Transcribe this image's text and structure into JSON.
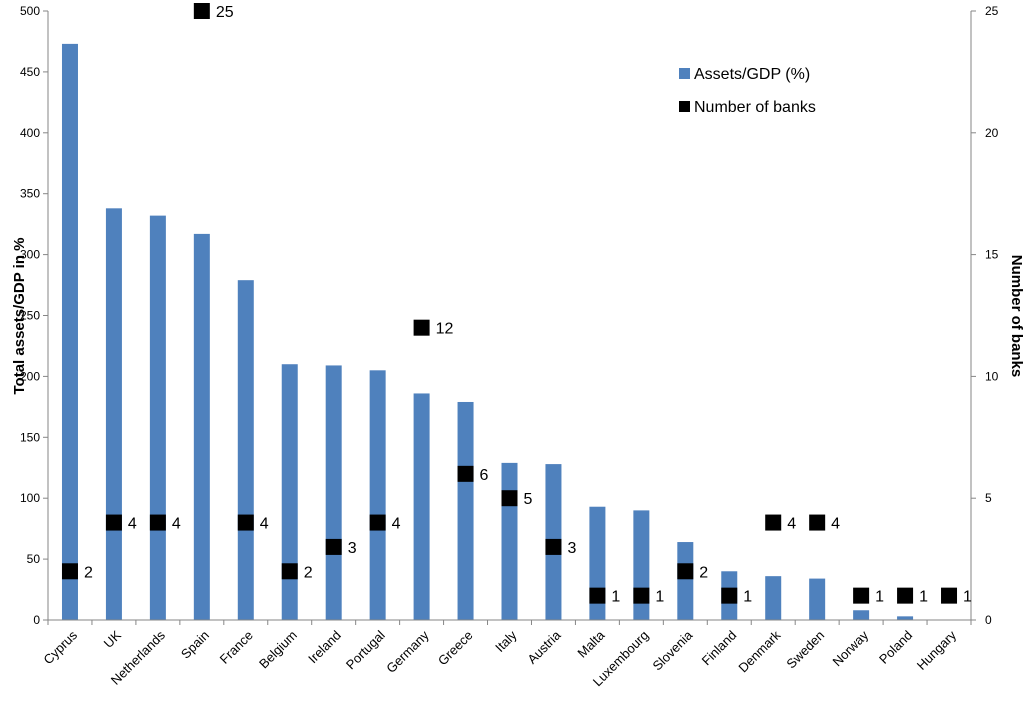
{
  "chart_data": {
    "type": "bar",
    "categories": [
      "Cyprus",
      "UK",
      "Netherlands",
      "Spain",
      "France",
      "Belgium",
      "Ireland",
      "Portugal",
      "Germany",
      "Greece",
      "Italy",
      "Austria",
      "Malta",
      "Luxembourg",
      "Slovenia",
      "Finland",
      "Denmark",
      "Sweden",
      "Norway",
      "Poland",
      "Hungary"
    ],
    "series": [
      {
        "name": "Assets/GDP (%)",
        "kind": "bar",
        "axis": "left",
        "color": "#4f81bd",
        "values": [
          473,
          338,
          332,
          317,
          279,
          210,
          209,
          205,
          186,
          179,
          129,
          128,
          93,
          90,
          64,
          40,
          36,
          34,
          8,
          3,
          0
        ]
      },
      {
        "name": "Number of banks",
        "kind": "marker",
        "axis": "right",
        "color": "#000000",
        "values": [
          2,
          4,
          4,
          25,
          4,
          2,
          3,
          4,
          12,
          6,
          5,
          3,
          1,
          1,
          2,
          1,
          4,
          4,
          1,
          1,
          1
        ]
      }
    ],
    "ylabel": "Total assets/GDP in %",
    "y2label": "Number of banks",
    "ylim": [
      0,
      500
    ],
    "y2lim": [
      0,
      25
    ],
    "yticks": [
      0,
      50,
      100,
      150,
      200,
      250,
      300,
      350,
      400,
      450,
      500
    ],
    "y2ticks": [
      0,
      5,
      10,
      15,
      20,
      25
    ],
    "grid": false,
    "legend": "top-right"
  }
}
